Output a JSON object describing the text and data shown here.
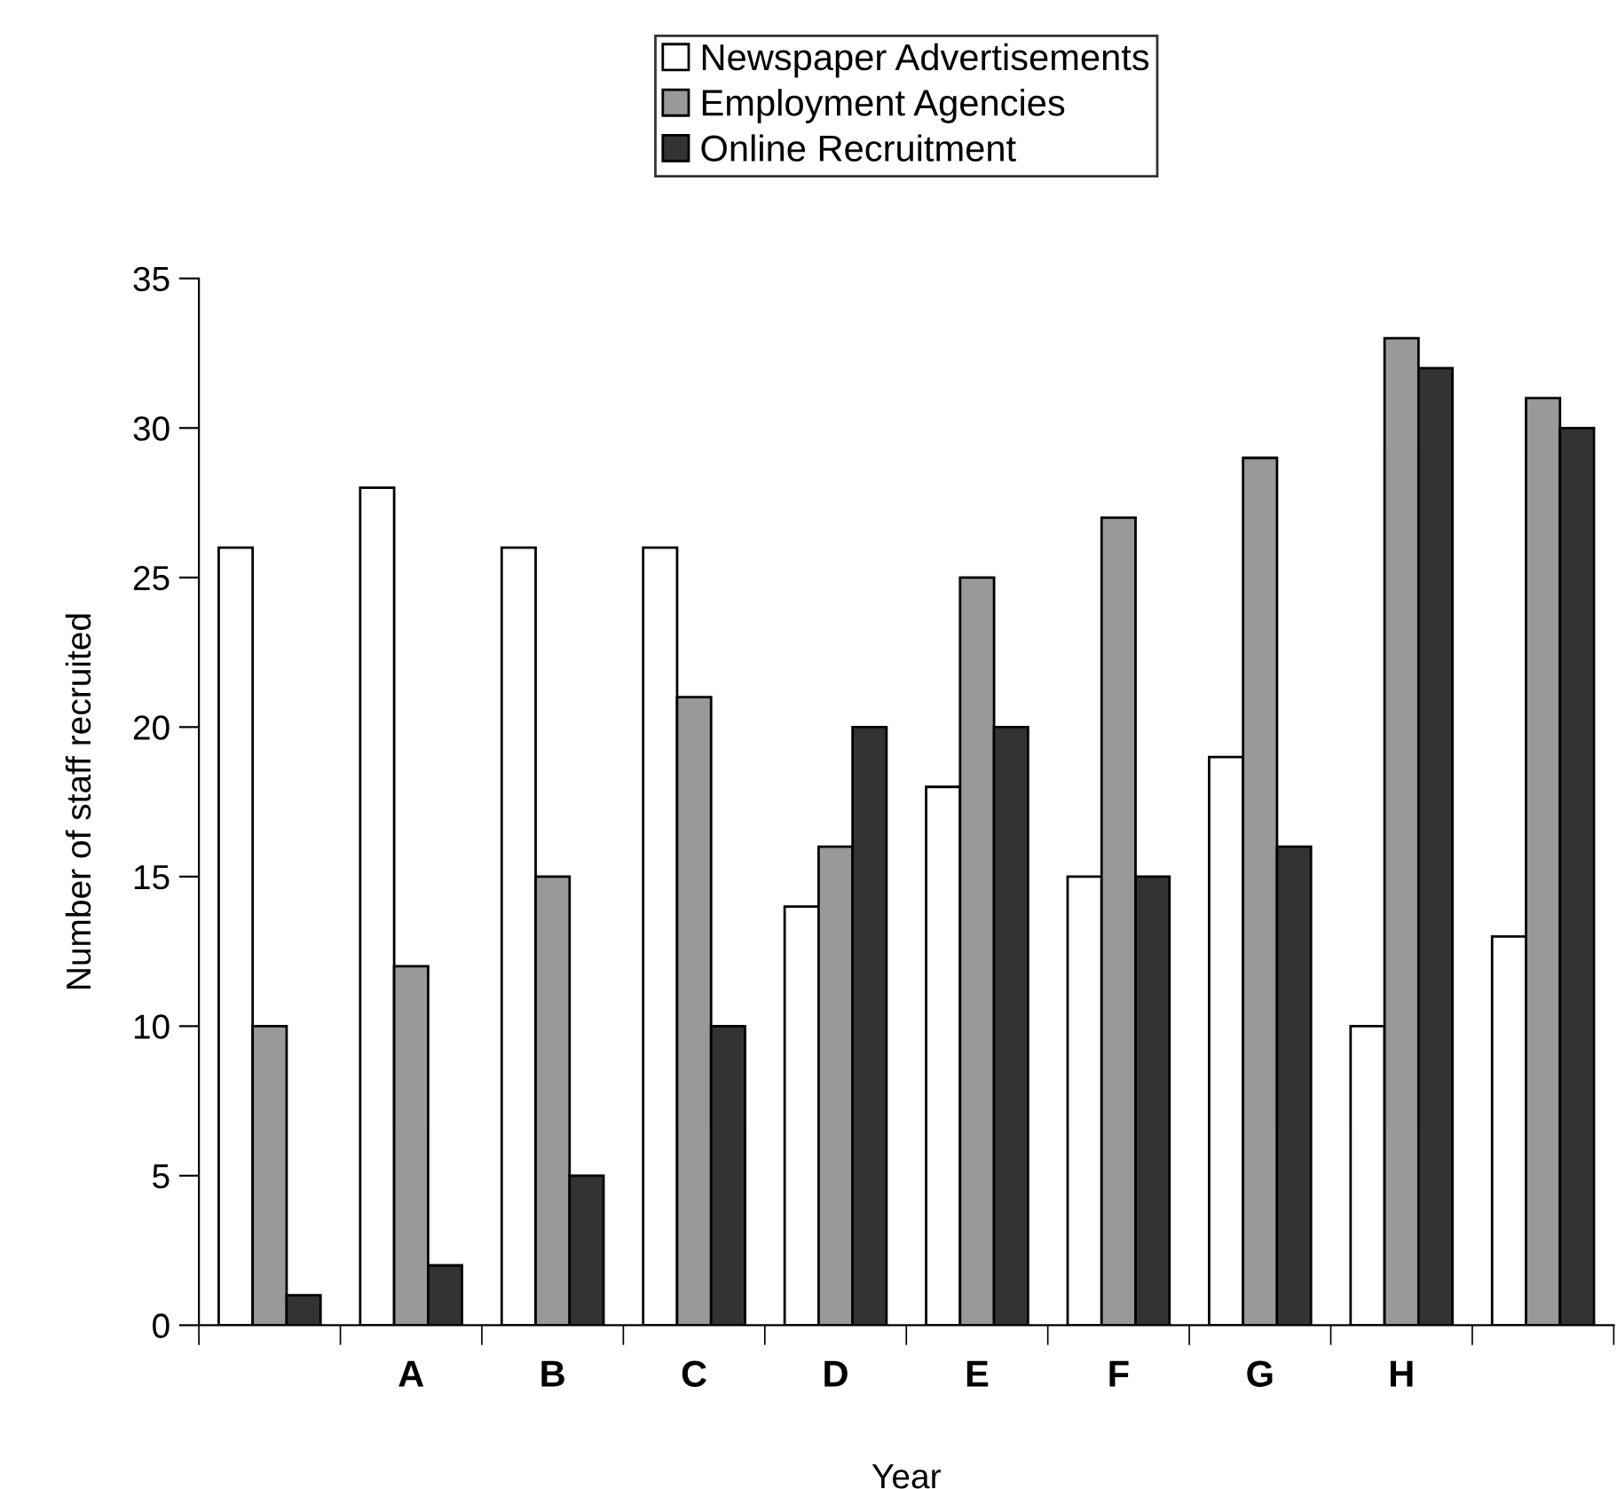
{
  "chart_data": {
    "type": "bar",
    "xlabel": "Year",
    "ylabel": "Number of staff recruited",
    "categories": [
      null,
      "A",
      "B",
      "C",
      "D",
      "E",
      "F",
      "G",
      "H",
      null
    ],
    "series": [
      {
        "name": "Newspaper Advertisements",
        "color": "#ffffff",
        "values": [
          26,
          28,
          26,
          26,
          14,
          18,
          15,
          19,
          10,
          13
        ]
      },
      {
        "name": "Employment Agencies",
        "color": "#999999",
        "values": [
          10,
          12,
          15,
          21,
          16,
          25,
          27,
          29,
          33,
          31
        ]
      },
      {
        "name": "Online Recruitment",
        "color": "#333333",
        "values": [
          1,
          2,
          5,
          10,
          20,
          20,
          15,
          16,
          32,
          30
        ]
      }
    ],
    "ylim": [
      0,
      35
    ],
    "yticks": [
      0,
      5,
      10,
      15,
      20,
      25,
      30,
      35
    ],
    "grid": false,
    "legend": "top"
  }
}
